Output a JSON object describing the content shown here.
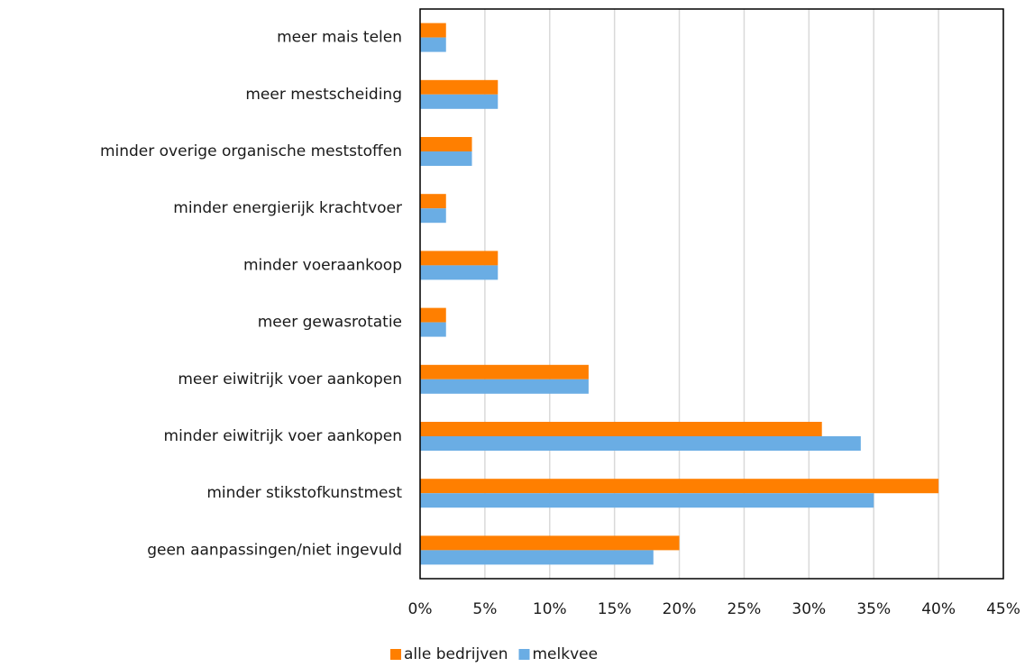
{
  "chart_data": {
    "type": "bar",
    "orientation": "horizontal",
    "categories": [
      "meer mais telen",
      "meer mestscheiding",
      "minder overige organische meststoffen",
      "minder energierijk krachtvoer",
      "minder voeraankoop",
      "meer gewasrotatie",
      "meer eiwitrijk voer aankopen",
      "minder eiwitrijk voer aankopen",
      "minder stikstofkunstmest",
      "geen aanpassingen/niet ingevuld"
    ],
    "series": [
      {
        "name": "alle bedrijven",
        "color": "#ff7f00",
        "values": [
          2,
          6,
          4,
          2,
          6,
          2,
          13,
          31,
          40,
          20
        ]
      },
      {
        "name": "melkvee",
        "color": "#6aade4",
        "values": [
          2,
          6,
          4,
          2,
          6,
          2,
          13,
          34,
          35,
          18
        ]
      }
    ],
    "xlim": [
      0,
      45
    ],
    "xticks": [
      {
        "value": 0,
        "label": "0%"
      },
      {
        "value": 5,
        "label": "5%"
      },
      {
        "value": 10,
        "label": "10%"
      },
      {
        "value": 15,
        "label": "15%"
      },
      {
        "value": 20,
        "label": "20%"
      },
      {
        "value": 25,
        "label": "25%"
      },
      {
        "value": 30,
        "label": "30%"
      },
      {
        "value": 35,
        "label": "35%"
      },
      {
        "value": 40,
        "label": "40%"
      },
      {
        "value": 45,
        "label": "45%"
      }
    ],
    "grid": true,
    "legend": "bottom"
  }
}
